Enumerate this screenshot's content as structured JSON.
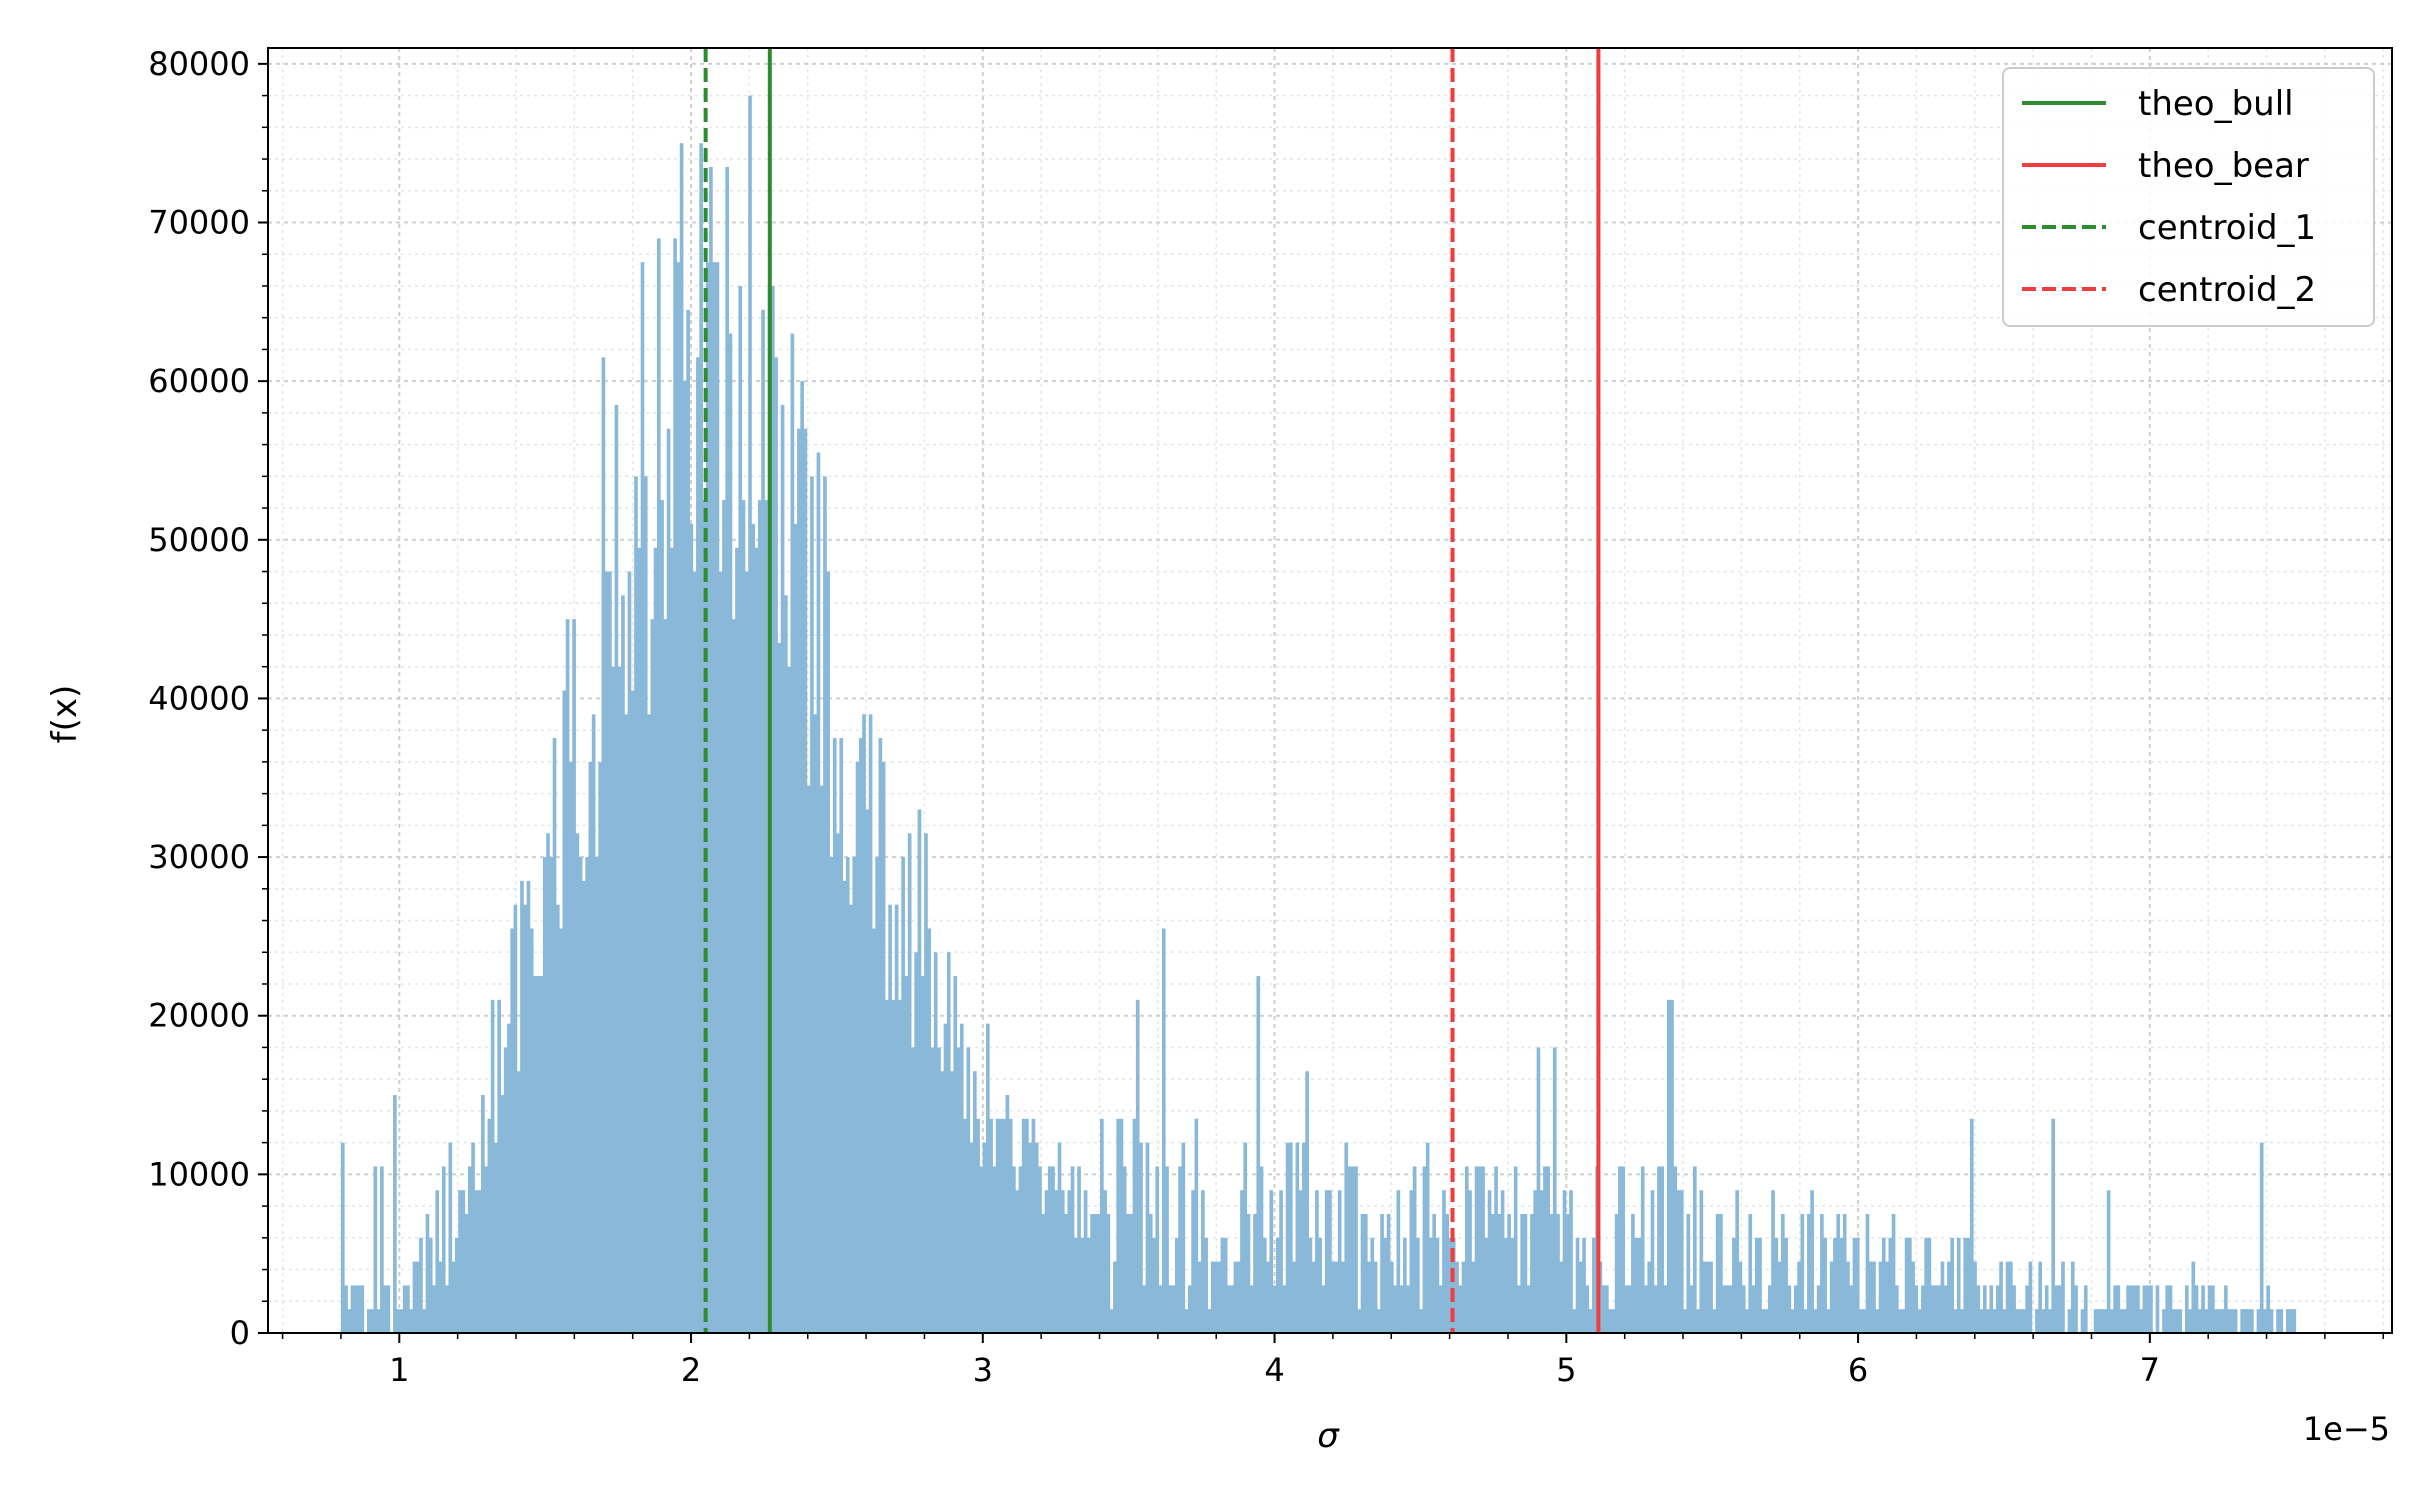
{
  "chart_data": {
    "type": "bar",
    "subtype": "histogram",
    "xlabel": "σ",
    "ylabel": "f(x)",
    "x_offset_text": "1e−5",
    "x_scale_factor": 1e-05,
    "xlim": [
      0.55,
      7.83
    ],
    "ylim": [
      0,
      81000
    ],
    "xticks": [
      1,
      2,
      3,
      4,
      5,
      6,
      7
    ],
    "xtick_labels": [
      "1",
      "2",
      "3",
      "4",
      "5",
      "6",
      "7"
    ],
    "yticks": [
      0,
      10000,
      20000,
      30000,
      40000,
      50000,
      60000,
      70000,
      80000
    ],
    "ytick_labels": [
      "0",
      "10000",
      "20000",
      "30000",
      "40000",
      "50000",
      "60000",
      "70000",
      "80000"
    ],
    "grid": true,
    "minor_grid": true,
    "legend_position": "top-right",
    "bar_color": "#8ab8d9",
    "histogram": {
      "x": [
        0.8,
        1.0,
        1.2,
        1.4,
        1.6,
        1.8,
        2.0,
        2.2,
        2.4,
        2.6,
        2.8,
        3.0,
        3.2,
        3.4,
        3.6,
        3.8,
        4.0,
        4.2,
        4.4,
        4.6,
        4.8,
        5.0,
        5.2,
        5.4,
        5.6,
        5.8,
        6.0,
        6.2,
        6.4,
        6.6,
        6.8,
        7.0,
        7.2,
        7.4,
        7.5
      ],
      "y": [
        1500,
        1500,
        7500,
        22000,
        37000,
        48000,
        62000,
        62000,
        46000,
        33000,
        22000,
        14000,
        10000,
        8000,
        7000,
        6500,
        6500,
        6500,
        6000,
        6000,
        5500,
        5500,
        5000,
        6000,
        5000,
        4500,
        4000,
        3500,
        3000,
        2500,
        2000,
        2000,
        2000,
        1500,
        1000
      ]
    },
    "vlines": [
      {
        "name": "theo_bull",
        "x": 2.27,
        "color": "#2e8b2e",
        "style": "solid"
      },
      {
        "name": "theo_bear",
        "x": 5.11,
        "color": "#f03c3c",
        "style": "solid"
      },
      {
        "name": "centroid_1",
        "x": 2.05,
        "color": "#2e8b2e",
        "style": "dashed"
      },
      {
        "name": "centroid_2",
        "x": 4.61,
        "color": "#f03c3c",
        "style": "dashed"
      }
    ]
  }
}
